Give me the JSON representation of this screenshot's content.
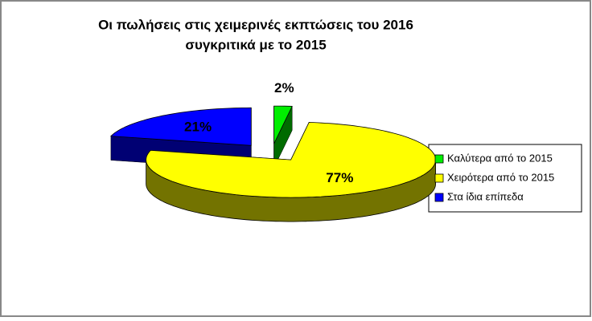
{
  "chart_data": {
    "type": "pie",
    "title": [
      "Οι πωλήσεις στις χειμερινές εκπτώσεις του 2016",
      "συγκριτικά με το 2015"
    ],
    "categories": [
      "Καλύτερα από το 2015",
      "Χειρότερα από το 2015",
      "Στα ίδια επίπεδα"
    ],
    "values": [
      2,
      77,
      21
    ],
    "value_labels": [
      "2%",
      "77%",
      "21%"
    ],
    "colors": [
      "#00ee00",
      "#ffff00",
      "#0000ff"
    ],
    "legend": "right"
  }
}
